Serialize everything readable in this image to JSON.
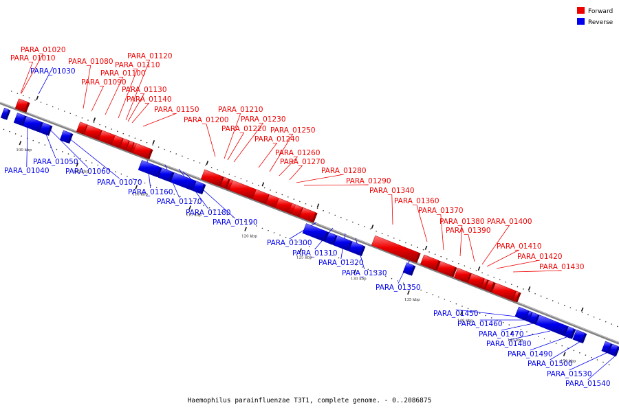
{
  "caption": "Haemophilus parainfluenzae T3T1, complete genome. - 0..2086875",
  "legend": [
    {
      "label": "Forward",
      "color": "#ee0000"
    },
    {
      "label": "Reverse",
      "color": "#0000ee"
    }
  ],
  "colors": {
    "forward": "#ee0000",
    "reverse": "#0000ee",
    "backbone": "#808080"
  },
  "ticks": [
    "100 kbp",
    "105 kbp",
    "110 kbp",
    "115 kbp",
    "120 kbp",
    "125 kbp",
    "130 kbp",
    "135 kbp",
    "140 kbp",
    "145 kbp",
    "150 kbp"
  ],
  "genes": [
    {
      "name": "PARA_01010",
      "strand": "forward"
    },
    {
      "name": "PARA_01020",
      "strand": "forward"
    },
    {
      "name": "PARA_01030",
      "strand": "reverse"
    },
    {
      "name": "PARA_01040",
      "strand": "reverse"
    },
    {
      "name": "PARA_01050",
      "strand": "reverse"
    },
    {
      "name": "PARA_01060",
      "strand": "reverse"
    },
    {
      "name": "PARA_01070",
      "strand": "reverse"
    },
    {
      "name": "PARA_01080",
      "strand": "forward"
    },
    {
      "name": "PARA_01090",
      "strand": "forward"
    },
    {
      "name": "PARA_01100",
      "strand": "forward"
    },
    {
      "name": "PARA_01110",
      "strand": "forward"
    },
    {
      "name": "PARA_01120",
      "strand": "forward"
    },
    {
      "name": "PARA_01130",
      "strand": "forward"
    },
    {
      "name": "PARA_01140",
      "strand": "forward"
    },
    {
      "name": "PARA_01150",
      "strand": "forward"
    },
    {
      "name": "PARA_01160",
      "strand": "reverse"
    },
    {
      "name": "PARA_01170",
      "strand": "reverse"
    },
    {
      "name": "PARA_01180",
      "strand": "reverse"
    },
    {
      "name": "PARA_01190",
      "strand": "reverse"
    },
    {
      "name": "PARA_01200",
      "strand": "forward"
    },
    {
      "name": "PARA_01210",
      "strand": "forward"
    },
    {
      "name": "PARA_01220",
      "strand": "forward"
    },
    {
      "name": "PARA_01230",
      "strand": "forward"
    },
    {
      "name": "PARA_01240",
      "strand": "forward"
    },
    {
      "name": "PARA_01250",
      "strand": "forward"
    },
    {
      "name": "PARA_01260",
      "strand": "forward"
    },
    {
      "name": "PARA_01270",
      "strand": "forward"
    },
    {
      "name": "PARA_01280",
      "strand": "forward"
    },
    {
      "name": "PARA_01290",
      "strand": "forward"
    },
    {
      "name": "PARA_01300",
      "strand": "reverse"
    },
    {
      "name": "PARA_01310",
      "strand": "reverse"
    },
    {
      "name": "PARA_01320",
      "strand": "reverse"
    },
    {
      "name": "PARA_01330",
      "strand": "reverse"
    },
    {
      "name": "PARA_01340",
      "strand": "forward"
    },
    {
      "name": "PARA_01350",
      "strand": "reverse"
    },
    {
      "name": "PARA_01360",
      "strand": "forward"
    },
    {
      "name": "PARA_01370",
      "strand": "forward"
    },
    {
      "name": "PARA_01380",
      "strand": "forward"
    },
    {
      "name": "PARA_01390",
      "strand": "forward"
    },
    {
      "name": "PARA_01400",
      "strand": "forward"
    },
    {
      "name": "PARA_01410",
      "strand": "forward"
    },
    {
      "name": "PARA_01420",
      "strand": "forward"
    },
    {
      "name": "PARA_01430",
      "strand": "forward"
    },
    {
      "name": "PARA_01450",
      "strand": "reverse"
    },
    {
      "name": "PARA_01460",
      "strand": "reverse"
    },
    {
      "name": "PARA_01470",
      "strand": "reverse"
    },
    {
      "name": "PARA_01480",
      "strand": "reverse"
    },
    {
      "name": "PARA_01490",
      "strand": "reverse"
    },
    {
      "name": "PARA_01500",
      "strand": "reverse"
    },
    {
      "name": "PARA_01530",
      "strand": "reverse"
    },
    {
      "name": "PARA_01540",
      "strand": "reverse"
    }
  ]
}
